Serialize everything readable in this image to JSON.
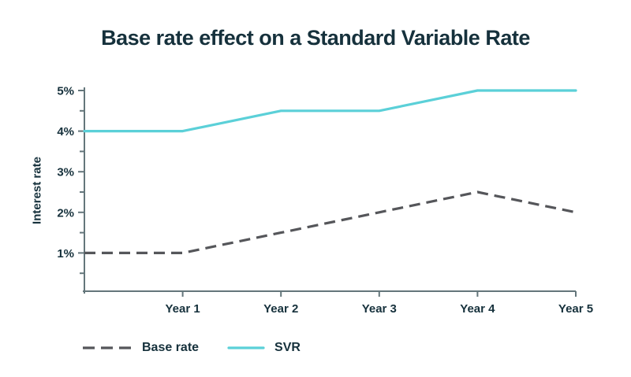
{
  "chart_data": {
    "type": "line",
    "title": "Base rate effect on a Standard Variable Rate",
    "xlabel": "",
    "ylabel": "Interest rate",
    "x_values": [
      0,
      1,
      2,
      3,
      4,
      5
    ],
    "x_tick_labels": [
      "Year 1",
      "Year 2",
      "Year 3",
      "Year 4",
      "Year 5"
    ],
    "y_tick_labels": [
      "1%",
      "2%",
      "3%",
      "4%",
      "5%"
    ],
    "ylim": [
      0,
      5
    ],
    "y_minor_step": 0.5,
    "grid": false,
    "legend_position": "bottom-left",
    "series": [
      {
        "name": "Base rate",
        "style": "dashed",
        "color": "#55565A",
        "values": [
          1,
          1,
          1.5,
          2,
          2.5,
          2
        ]
      },
      {
        "name": "SVR",
        "style": "solid",
        "color": "#5BD0D8",
        "values": [
          4,
          4,
          4.5,
          4.5,
          5,
          5
        ]
      }
    ]
  },
  "colors": {
    "background": "#FFFFFF",
    "text": "#16313C",
    "axis": "#64767B"
  }
}
